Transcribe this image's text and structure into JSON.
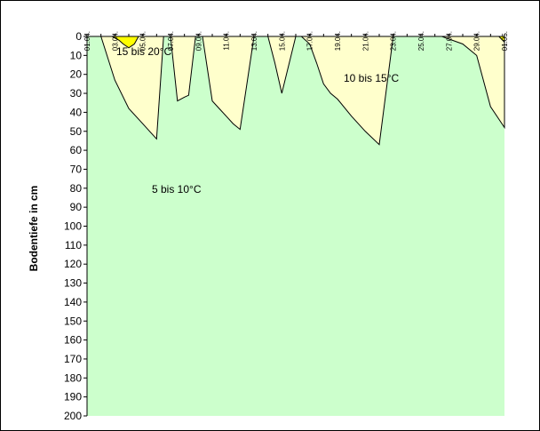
{
  "chart_data": {
    "type": "area",
    "title": "",
    "xlabel": "",
    "ylabel": "Bodentiefe in cm",
    "x_tick_labels": [
      "01.04.",
      "03.04.",
      "05.04.",
      "07.04.",
      "09.04.",
      "11.04.",
      "13.04.",
      "15.04.",
      "17.04.",
      "19.04.",
      "21.04.",
      "23.04.",
      "25.04.",
      "27.04.",
      "29.04.",
      "01.05."
    ],
    "y_tick_labels": [
      "0",
      "10",
      "20",
      "30",
      "40",
      "50",
      "60",
      "70",
      "80",
      "90",
      "100",
      "110",
      "120",
      "130",
      "140",
      "150",
      "160",
      "170",
      "180",
      "190",
      "200"
    ],
    "ylim": [
      0,
      200
    ],
    "y_inverted": true,
    "x_axis_position": "top",
    "grid": false,
    "colors": {
      "5 bis 10°C": "#ccffcc",
      "10 bis 15°C": "#ffffcc",
      "15 bis 20°C": "#ffff00"
    },
    "regions": [
      {
        "label": "15 bis 20°C",
        "series": [
          {
            "x": [
              2.8,
              3.3,
              3.6,
              4.0,
              4.4,
              4.7
            ],
            "depth": [
              0,
              2,
              4,
              6,
              4,
              0
            ]
          },
          {
            "x": [
              30.6,
              31.0,
              31.0
            ],
            "depth": [
              0,
              3,
              0
            ]
          }
        ]
      },
      {
        "label": "10 bis 15°C",
        "series": [
          {
            "x": [
              1.0,
              2.0,
              3.0,
              4.0,
              5.0,
              5.5,
              6.0,
              6.5,
              7.0,
              7.5,
              8.0,
              8.3,
              8.8,
              9.3,
              10.0,
              10.5,
              11.0,
              11.5,
              12.0,
              13.0,
              14.0,
              14.5,
              15.0,
              16.0,
              16.4,
              17.0,
              17.5,
              18.0,
              18.5,
              19.0,
              20.0,
              21.0,
              22.0,
              23.0,
              24.0,
              24.3,
              26.5,
              28.0,
              29.0,
              30.0,
              31.0
            ],
            "depth": [
              0,
              0,
              23,
              38,
              46,
              50,
              54,
              0,
              0,
              34,
              32,
              31,
              0,
              0,
              34,
              38,
              42,
              46,
              49,
              0,
              0,
              14,
              30,
              0,
              0,
              4,
              14,
              25,
              30,
              33,
              42,
              50,
              57,
              0,
              0,
              0,
              0,
              4,
              10,
              37,
              48
            ]
          }
        ]
      },
      {
        "label": "5 bis 10°C",
        "series": [
          {
            "x": [
              1.0,
              31.0
            ],
            "depth": [
              200,
              200
            ]
          }
        ]
      }
    ],
    "annotations": [
      "15 bis 20°C",
      "10 bis 15°C",
      "5 bis 10°C"
    ]
  }
}
